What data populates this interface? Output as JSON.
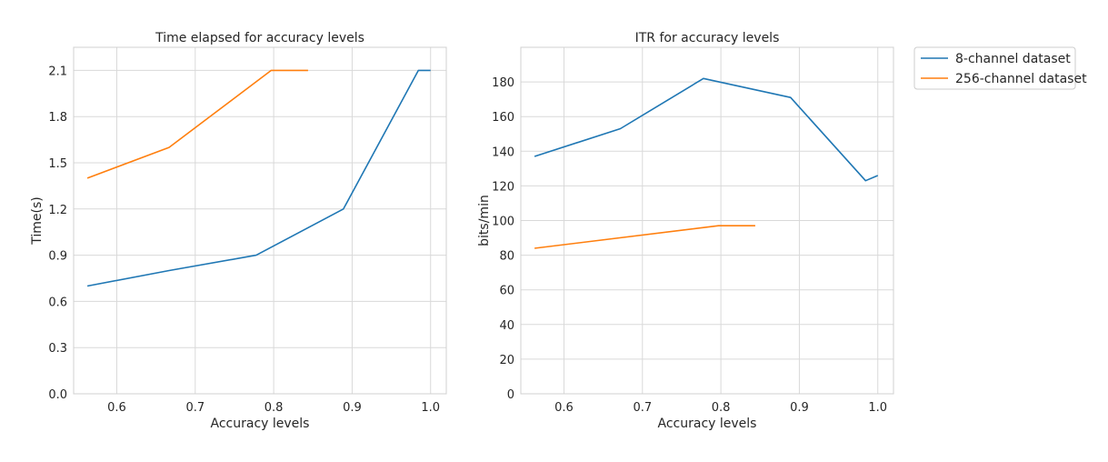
{
  "chart_data": [
    {
      "type": "line",
      "title": "Time elapsed for accuracy levels",
      "xlabel": "Accuracy levels",
      "ylabel": "Time(s)",
      "xlim": [
        0.545,
        1.02
      ],
      "ylim": [
        0.0,
        2.25
      ],
      "xticks": [
        "0.6",
        "0.7",
        "0.8",
        "0.9",
        "1.0"
      ],
      "xtick_values": [
        0.6,
        0.7,
        0.8,
        0.9,
        1.0
      ],
      "yticks": [
        "0.0",
        "0.3",
        "0.6",
        "0.9",
        "1.2",
        "1.5",
        "1.8",
        "2.1"
      ],
      "ytick_values": [
        0.0,
        0.3,
        0.6,
        0.9,
        1.2,
        1.5,
        1.8,
        2.1
      ],
      "grid": true,
      "series": [
        {
          "name": "8-channel dataset",
          "color": "#1f77b4",
          "x": [
            0.5625,
            0.6667,
            0.7778,
            0.8889,
            0.9844,
            1.0
          ],
          "y": [
            0.7,
            0.8,
            0.9,
            1.2,
            2.1,
            2.1
          ]
        },
        {
          "name": "256-channel dataset",
          "color": "#ff7f0e",
          "x": [
            0.5625,
            0.6667,
            0.7969,
            0.8438
          ],
          "y": [
            1.4,
            1.6,
            2.1,
            2.1
          ]
        }
      ]
    },
    {
      "type": "line",
      "title": "ITR for accuracy levels",
      "xlabel": "Accuracy levels",
      "ylabel": "bits/min",
      "xlim": [
        0.545,
        1.02
      ],
      "ylim": [
        0,
        200
      ],
      "xticks": [
        "0.6",
        "0.7",
        "0.8",
        "0.9",
        "1.0"
      ],
      "xtick_values": [
        0.6,
        0.7,
        0.8,
        0.9,
        1.0
      ],
      "yticks": [
        "0",
        "20",
        "40",
        "60",
        "80",
        "100",
        "120",
        "140",
        "160",
        "180"
      ],
      "ytick_values": [
        0,
        20,
        40,
        60,
        80,
        100,
        120,
        140,
        160,
        180
      ],
      "grid": true,
      "series": [
        {
          "name": "8-channel dataset",
          "color": "#1f77b4",
          "x": [
            0.5625,
            0.6719,
            0.7778,
            0.8889,
            0.9844,
            1.0
          ],
          "y": [
            137,
            153,
            182,
            171,
            123,
            126
          ]
        },
        {
          "name": "256-channel dataset",
          "color": "#ff7f0e",
          "x": [
            0.5625,
            0.7969,
            0.8438
          ],
          "y": [
            84,
            97,
            97
          ]
        }
      ]
    }
  ],
  "legend": {
    "placement": "outside-right",
    "entries": [
      {
        "label": "8-channel dataset",
        "color": "#1f77b4"
      },
      {
        "label": "256-channel dataset",
        "color": "#ff7f0e"
      }
    ]
  }
}
